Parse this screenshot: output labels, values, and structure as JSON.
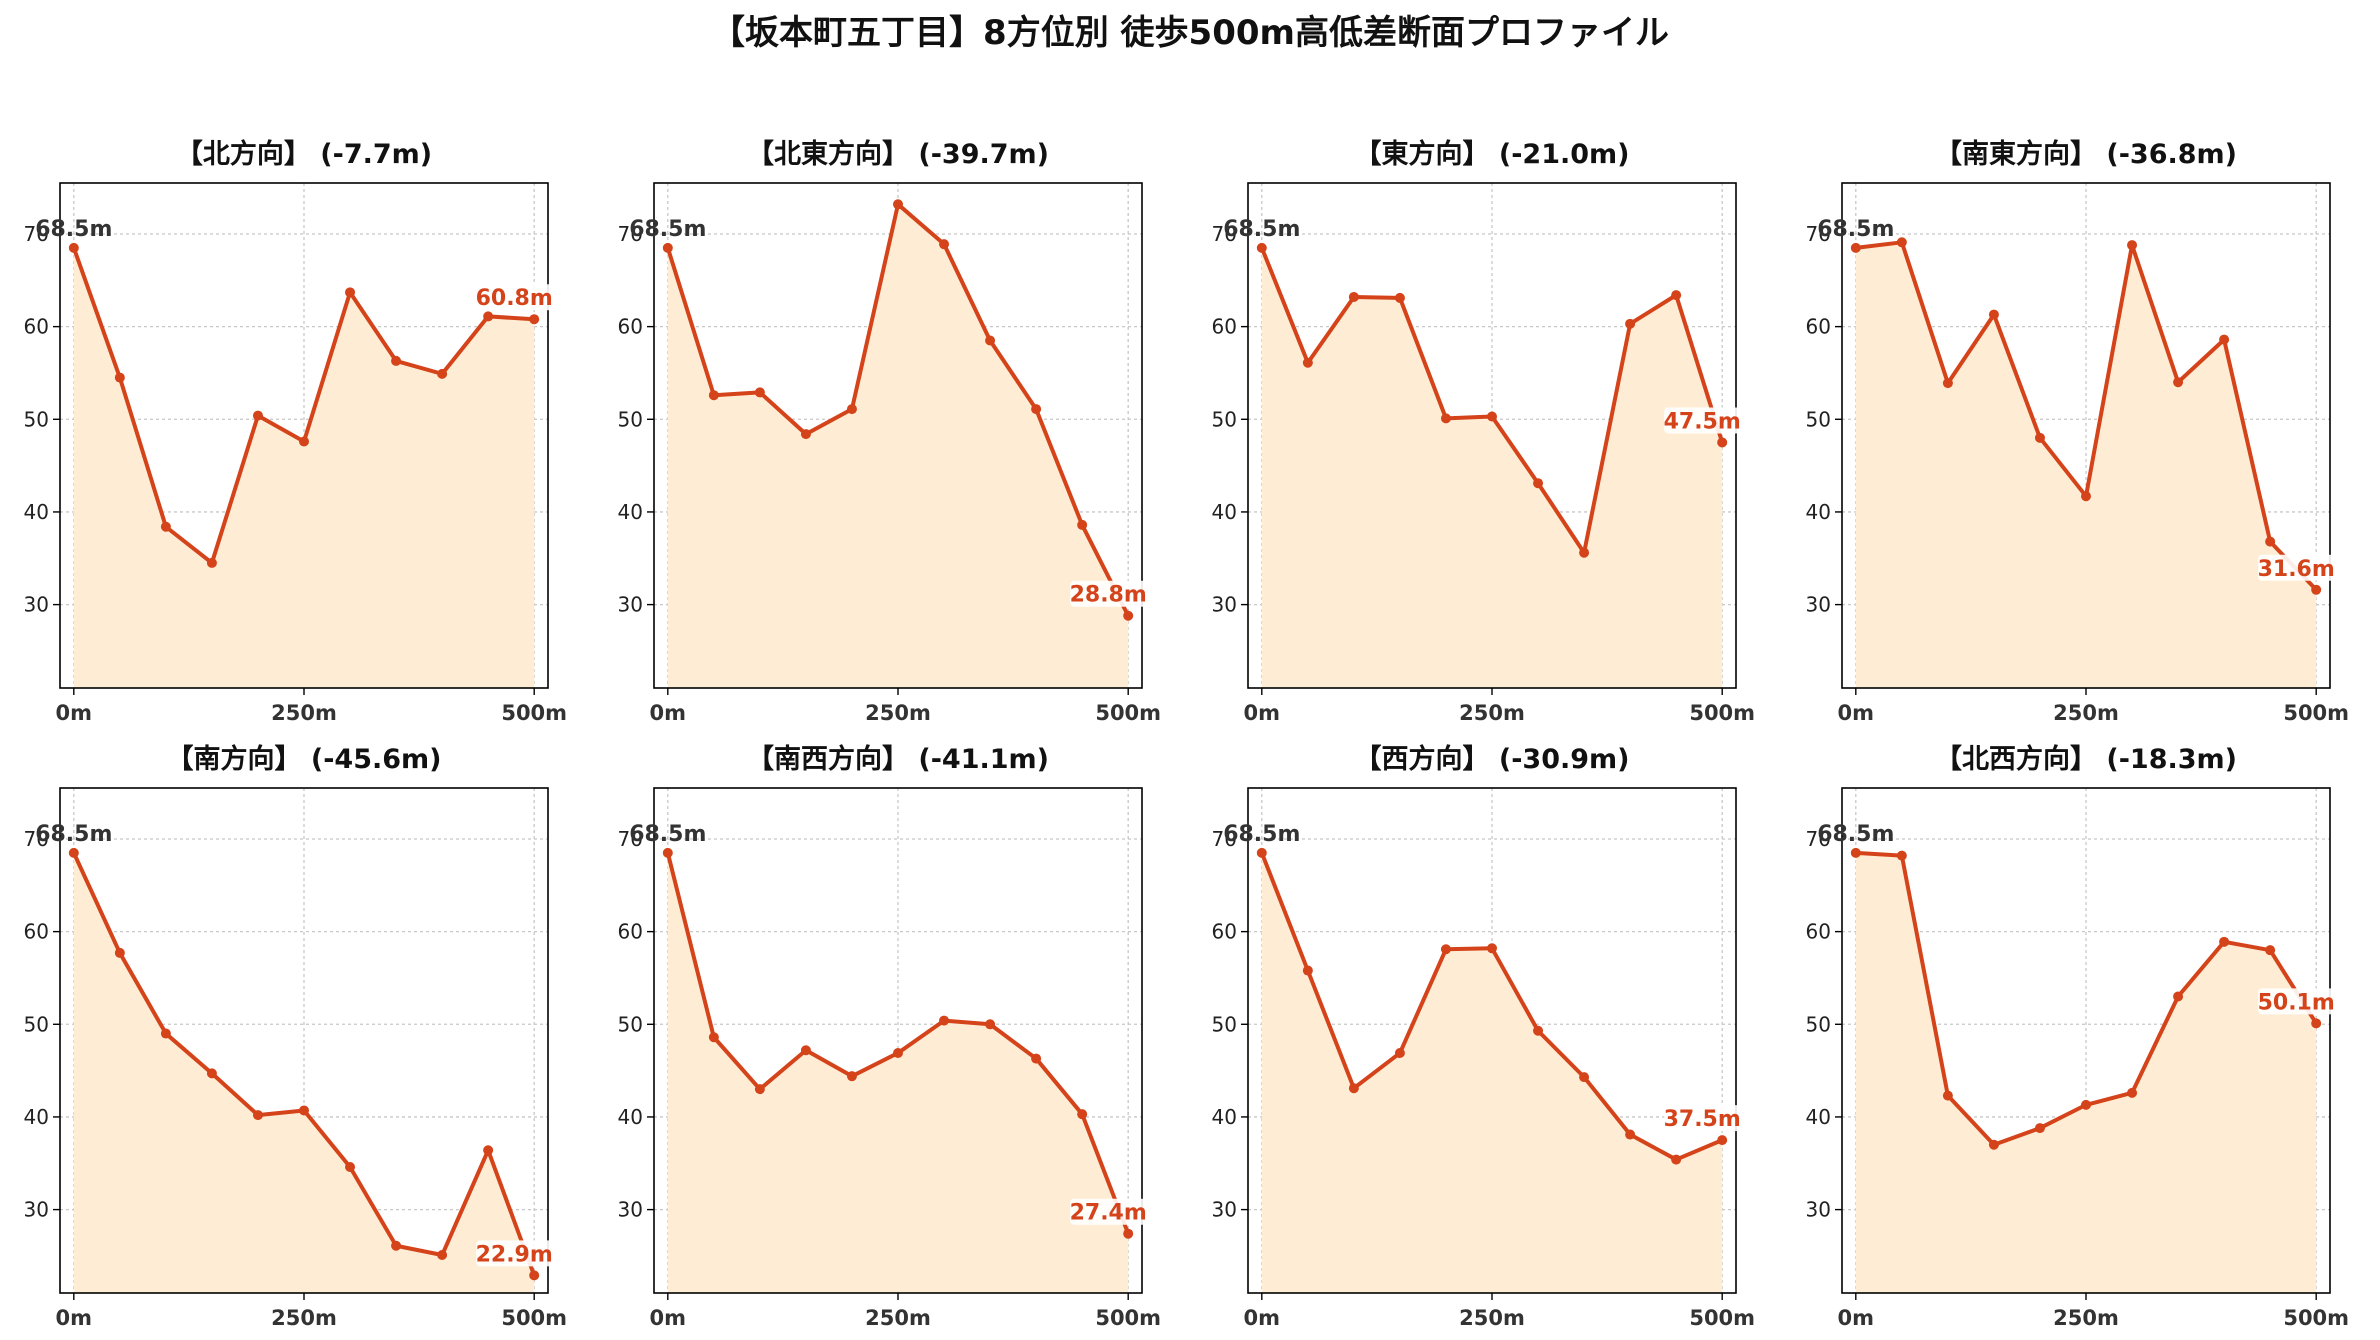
{
  "title": "【坂本町五丁目】8方位別 徒歩500m高低差断面プロファイル",
  "colors": {
    "line": "#d4431a",
    "fill": "#feedd4",
    "grid": "#c8c8c8",
    "axis": "#000000"
  },
  "chart_data": {
    "type": "line",
    "grid": true,
    "x": [
      0,
      50,
      100,
      150,
      200,
      250,
      300,
      350,
      400,
      450,
      500
    ],
    "xticks": [
      0,
      250,
      500
    ],
    "xtick_labels": [
      "0m",
      "250m",
      "500m"
    ],
    "xlim": [
      -15,
      515
    ],
    "yticks": [
      30,
      40,
      50,
      60,
      70
    ],
    "ytick_labels": [
      "30",
      "40",
      "50",
      "60",
      "70"
    ],
    "ylim": [
      21,
      75.5
    ],
    "panels": [
      {
        "title": "【北方向】 (-7.7m)",
        "values": [
          68.5,
          54.5,
          38.4,
          34.5,
          50.4,
          47.6,
          63.7,
          56.3,
          54.9,
          61.1,
          60.8
        ],
        "start_label": "68.5m",
        "end_label": "60.8m"
      },
      {
        "title": "【北東方向】 (-39.7m)",
        "values": [
          68.5,
          52.6,
          52.9,
          48.4,
          51.1,
          73.2,
          68.9,
          58.5,
          51.1,
          38.6,
          28.8
        ],
        "start_label": "68.5m",
        "end_label": "28.8m"
      },
      {
        "title": "【東方向】 (-21.0m)",
        "values": [
          68.5,
          56.1,
          63.2,
          63.1,
          50.1,
          50.3,
          43.1,
          35.6,
          60.3,
          63.4,
          47.5
        ],
        "start_label": "68.5m",
        "end_label": "47.5m"
      },
      {
        "title": "【南東方向】 (-36.8m)",
        "values": [
          68.5,
          69.1,
          53.9,
          61.3,
          48.0,
          41.7,
          68.8,
          54.0,
          58.6,
          36.8,
          31.6
        ],
        "start_label": "68.5m",
        "end_label": "31.6m"
      },
      {
        "title": "【南方向】 (-45.6m)",
        "values": [
          68.5,
          57.7,
          49.0,
          44.7,
          40.2,
          40.7,
          34.6,
          26.1,
          25.1,
          36.4,
          22.9
        ],
        "start_label": "68.5m",
        "end_label": "22.9m"
      },
      {
        "title": "【南西方向】 (-41.1m)",
        "values": [
          68.5,
          48.6,
          43.0,
          47.2,
          44.4,
          46.9,
          50.4,
          50.0,
          46.3,
          40.3,
          27.4
        ],
        "start_label": "68.5m",
        "end_label": "27.4m"
      },
      {
        "title": "【西方向】 (-30.9m)",
        "values": [
          68.5,
          55.8,
          43.1,
          46.9,
          58.1,
          58.2,
          49.3,
          44.3,
          38.1,
          35.4,
          37.5
        ],
        "start_label": "68.5m",
        "end_label": "37.5m"
      },
      {
        "title": "【北西方向】 (-18.3m)",
        "values": [
          68.5,
          68.2,
          42.3,
          37.0,
          38.8,
          41.3,
          42.6,
          53.0,
          58.9,
          58.0,
          50.1
        ],
        "start_label": "68.5m",
        "end_label": "50.1m"
      }
    ]
  }
}
